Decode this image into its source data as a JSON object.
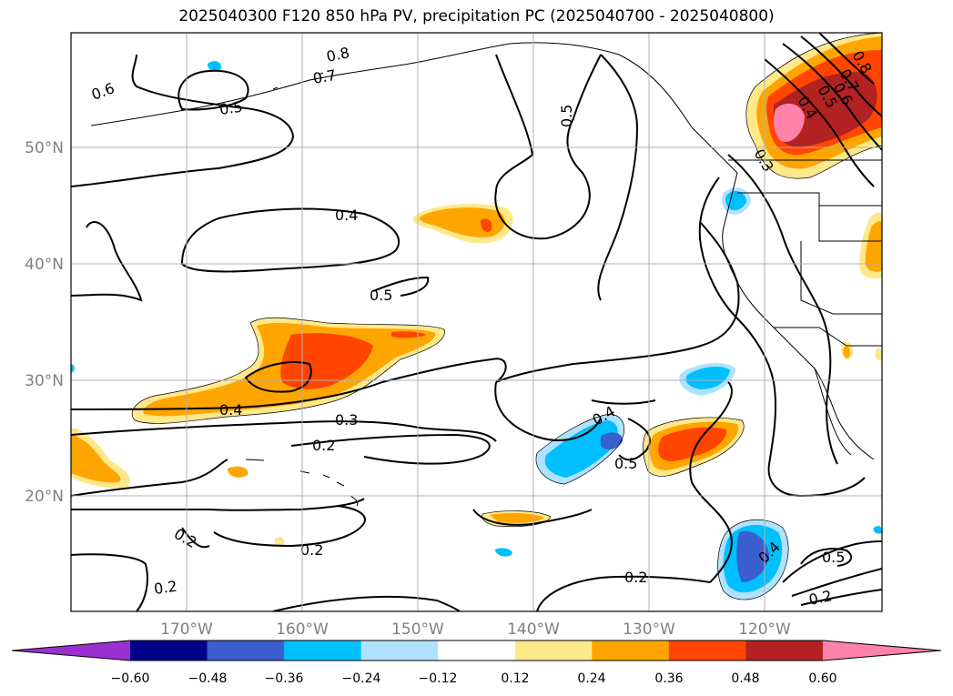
{
  "title": "2025040300 F120 850 hPa PV, precipitation PC (2025040700 - 2025040800)",
  "lat_labels": [
    "50°N",
    "40°N",
    "30°N",
    "20°N"
  ],
  "lon_labels": [
    "170°W",
    "160°W",
    "150°W",
    "140°W",
    "130°W",
    "120°W"
  ],
  "contour_labels": [
    "0.6",
    "0.8",
    "0.7",
    "0.5",
    "0.4",
    "0.5",
    "0.5",
    "0.4",
    "0.3",
    "0.2",
    "0.2",
    "0.2",
    "0.2",
    "0.4",
    "0.5",
    "0.4",
    "0.5",
    "0.2",
    "0.2",
    "0.7",
    "0.6",
    "0.5",
    "0.4",
    "0.3",
    "0.8"
  ],
  "colorbar": {
    "ticks": [
      "−0.60",
      "−0.48",
      "−0.36",
      "−0.24",
      "−0.12",
      "0.12",
      "0.24",
      "0.36",
      "0.48",
      "0.60"
    ],
    "colors": [
      "#9b30d0",
      "#00008b",
      "#3a5fcd",
      "#00bfff",
      "#b0e2ff",
      "#ffffff",
      "#ffe88a",
      "#ffa500",
      "#ff4500",
      "#b22222",
      "#ff82ab"
    ]
  }
}
